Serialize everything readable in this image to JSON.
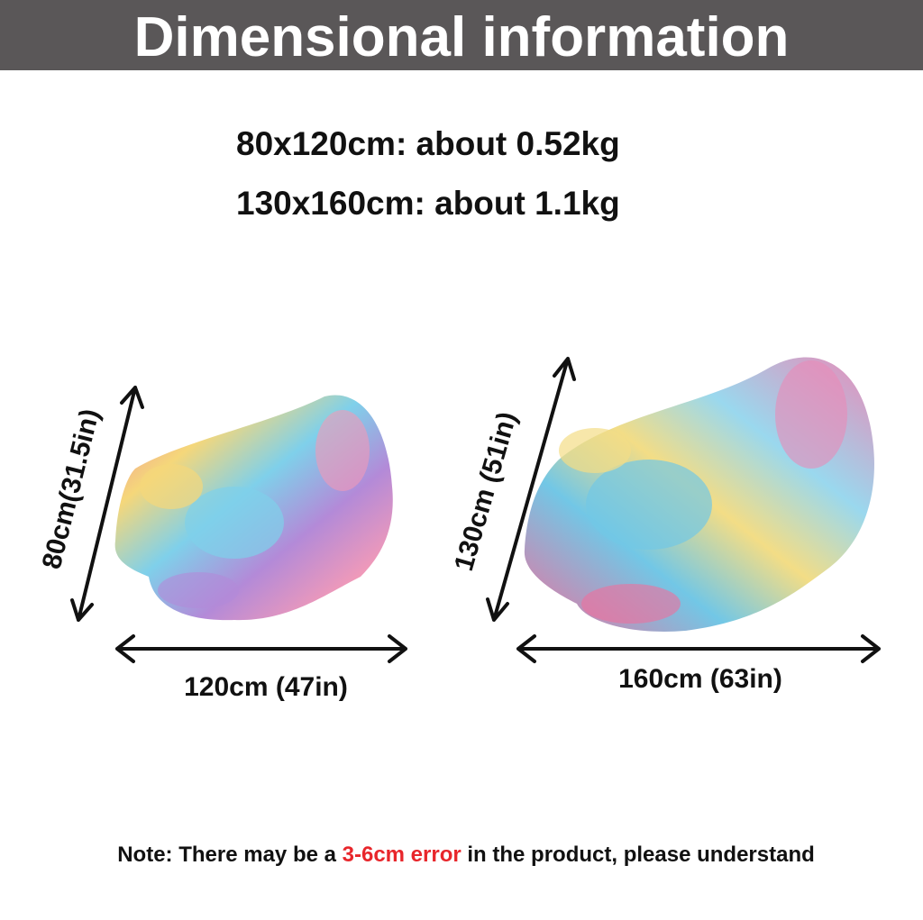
{
  "header": {
    "title": "Dimensional information"
  },
  "weights": [
    "80x120cm: about 0.52kg",
    "130x160cm: about 1.1kg"
  ],
  "blankets": [
    {
      "height_label": "80cm(31.5in)",
      "width_label": "120cm (47in)"
    },
    {
      "height_label": "130cm (51in)",
      "width_label": "160cm (63in)"
    }
  ],
  "note": {
    "prefix": "Note: There may be a ",
    "highlight": "3-6cm error",
    "suffix": " in the product, please understand"
  }
}
